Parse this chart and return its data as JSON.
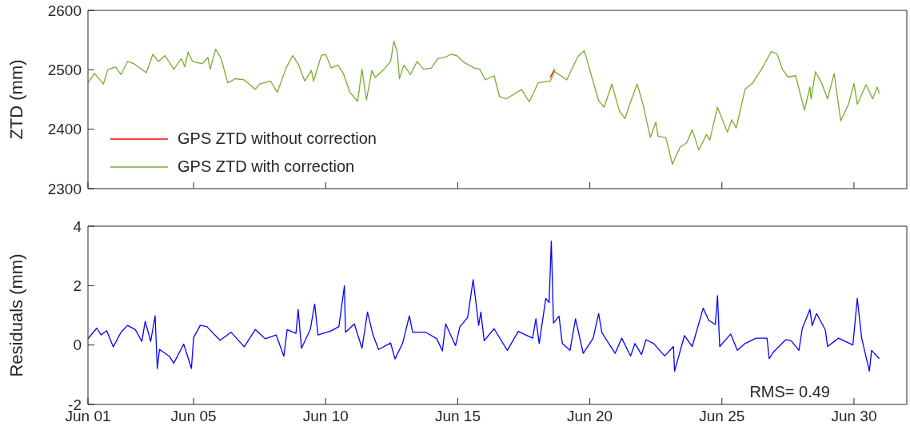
{
  "chart_data": [
    {
      "type": "line",
      "ylabel": "ZTD (mm)",
      "ylim": [
        2300,
        2600
      ],
      "yticks": [
        2300,
        2400,
        2500,
        2600
      ],
      "xlim": [
        "--06-01",
        "--07-02"
      ],
      "xticks": [
        {
          "value": "--06-01",
          "label": null
        },
        {
          "value": "--06-05",
          "label": null
        },
        {
          "value": "--06-10",
          "label": null
        },
        {
          "value": "--06-15",
          "label": null
        },
        {
          "value": "--06-20",
          "label": null
        },
        {
          "value": "--06-25",
          "label": null
        },
        {
          "value": "--06-30",
          "label": null
        }
      ],
      "tick_labels": "y",
      "legend": "bottom left",
      "marker": "none",
      "line_style": "solid",
      "x": [
        "--06-01T00:00",
        "--06-01T06:00",
        "--06-01T14:00",
        "--06-01T18:00",
        "--06-02T01:00",
        "--06-02T06:00",
        "--06-02T12:00",
        "--06-02T18:00",
        "--06-03T05:00",
        "--06-03T11:00",
        "--06-03T16:00",
        "--06-03T22:00",
        "--06-04T06:00",
        "--06-04T13:00",
        "--06-04T16:00",
        "--06-04T19:00",
        "--06-04T23:00",
        "--06-05T08:00",
        "--06-05T13:00",
        "--06-05T15:00",
        "--06-05T20:00",
        "--06-06T01:00",
        "--06-06T07:00",
        "--06-06T14:00",
        "--06-06T22:00",
        "--06-07T08:00",
        "--06-07T12:00",
        "--06-07T22:00",
        "--06-08T04:00",
        "--06-08T12:00",
        "--06-08T18:00",
        "--06-08T23:00",
        "--06-09T05:00",
        "--06-09T11:00",
        "--06-09T13:00",
        "--06-09T20:00",
        "--06-10T00:00",
        "--06-10T05:00",
        "--06-10T11:00",
        "--06-10T16:00",
        "--06-10T22:00",
        "--06-11T05:00",
        "--06-11T09:00",
        "--06-11T13:00",
        "--06-11T18:00",
        "--06-11T21:00",
        "--06-12T04:00",
        "--06-12T11:00",
        "--06-12T14:00",
        "--06-12T17:00",
        "--06-12T19:00",
        "--06-12T23:00",
        "--06-13T05:00",
        "--06-13T11:00",
        "--06-13T17:00",
        "--06-14T00:00",
        "--06-14T06:00",
        "--06-14T12:00",
        "--06-14T18:00",
        "--06-14T23:00",
        "--06-15T06:00",
        "--06-15T15:00",
        "--06-15T20:00",
        "--06-16T01:00",
        "--06-16T09:00",
        "--06-16T14:00",
        "--06-16T20:00",
        "--06-17T10:00",
        "--06-17T17:00",
        "--06-18T01:00",
        "--06-18T12:00",
        "--06-18T16:00",
        "--06-19T03:00",
        "--06-19T13:00",
        "--06-19T19:00",
        "--06-19T23:00",
        "--06-20T08:00",
        "--06-20T13:00",
        "--06-20T20:00",
        "--06-21T03:00",
        "--06-21T08:00",
        "--06-21T13:00",
        "--06-21T19:00",
        "--06-22T00:00",
        "--06-22T07:00",
        "--06-22T12:00",
        "--06-22T14:00",
        "--06-22T21:00",
        "--06-23T03:00",
        "--06-23T10:00",
        "--06-23T16:00",
        "--06-23T21:00",
        "--06-24T03:00",
        "--06-24T10:00",
        "--06-24T13:00",
        "--06-24T20:00",
        "--06-25T05:00",
        "--06-25T09:00",
        "--06-25T13:00",
        "--06-25T21:00",
        "--06-26T04:00",
        "--06-26T12:00",
        "--06-26T21:00",
        "--06-27T02:00",
        "--06-27T07:00",
        "--06-27T12:00",
        "--06-27T19:00",
        "--06-28T03:00",
        "--06-28T08:00",
        "--06-28T09:00",
        "--06-28T13:00",
        "--06-28T19:00",
        "--06-29T00:00",
        "--06-29T06:00",
        "--06-29T12:00",
        "--06-29T19:00",
        "--06-30T00:00",
        "--06-30T03:00",
        "--06-30T11:00",
        "--06-30T17:00",
        "--06-30T21:00",
        "--06-30T23:00"
      ],
      "series": [
        {
          "name": "GPS ZTD without correction",
          "color": "#ff0000",
          "values": [
            null,
            null,
            null,
            null,
            null,
            null,
            null,
            null,
            null,
            null,
            null,
            null,
            null,
            null,
            null,
            null,
            null,
            null,
            null,
            null,
            null,
            null,
            null,
            null,
            null,
            null,
            null,
            null,
            null,
            null,
            null,
            null,
            null,
            null,
            null,
            null,
            null,
            null,
            null,
            null,
            null,
            null,
            null,
            null,
            null,
            null,
            null,
            null,
            null,
            null,
            null,
            null,
            null,
            null,
            null,
            null,
            null,
            null,
            null,
            null,
            null,
            null,
            null,
            null,
            null,
            null,
            null,
            null,
            null,
            null,
            2487,
            2501,
            null,
            null,
            null,
            null,
            null,
            null,
            null,
            null,
            null,
            null,
            null,
            null,
            null,
            null,
            null,
            null,
            null,
            null,
            null,
            null,
            null,
            null,
            null,
            null,
            null,
            null,
            null,
            null,
            null,
            null,
            null,
            null,
            null,
            null,
            null,
            null,
            null,
            null,
            null,
            null,
            null,
            null,
            null,
            null,
            null,
            null,
            null,
            null,
            null,
            null
          ]
        },
        {
          "name": "GPS ZTD with correction",
          "color": "#77ac30",
          "values": [
            2478,
            2494,
            2476,
            2500,
            2505,
            2492,
            2514,
            2510,
            2495,
            2526,
            2514,
            2524,
            2501,
            2519,
            2505,
            2530,
            2514,
            2510,
            2521,
            2501,
            2535,
            2519,
            2478,
            2485,
            2483,
            2467,
            2476,
            2481,
            2462,
            2503,
            2524,
            2510,
            2481,
            2499,
            2481,
            2524,
            2526,
            2503,
            2508,
            2494,
            2462,
            2447,
            2501,
            2449,
            2499,
            2487,
            2499,
            2514,
            2548,
            2530,
            2485,
            2508,
            2492,
            2514,
            2501,
            2503,
            2519,
            2521,
            2526,
            2524,
            2512,
            2503,
            2501,
            2483,
            2490,
            2455,
            2451,
            2467,
            2446,
            2478,
            2481,
            2497,
            2483,
            2522,
            2532,
            2506,
            2448,
            2437,
            2476,
            2430,
            2418,
            2446,
            2476,
            2444,
            2386,
            2412,
            2388,
            2386,
            2341,
            2370,
            2377,
            2399,
            2365,
            2391,
            2382,
            2437,
            2395,
            2416,
            2402,
            2467,
            2478,
            2501,
            2531,
            2527,
            2501,
            2488,
            2490,
            2432,
            2471,
            2451,
            2497,
            2476,
            2451,
            2494,
            2414,
            2442,
            2477,
            2442,
            2475,
            2451,
            2471,
            2460
          ]
        }
      ]
    },
    {
      "type": "line",
      "ylabel": "Residuals (mm)",
      "ylim": [
        -2,
        4
      ],
      "yticks": [
        -2,
        0,
        2,
        4
      ],
      "xlim": [
        "--06-01",
        "--07-02"
      ],
      "xticks": [
        {
          "value": "--06-01",
          "label": "Jun 01"
        },
        {
          "value": "--06-05",
          "label": "Jun 05"
        },
        {
          "value": "--06-10",
          "label": "Jun 10"
        },
        {
          "value": "--06-15",
          "label": "Jun 15"
        },
        {
          "value": "--06-20",
          "label": "Jun 20"
        },
        {
          "value": "--06-25",
          "label": "Jun 25"
        },
        {
          "value": "--06-30",
          "label": "Jun 30"
        }
      ],
      "marker": "none",
      "line_style": "solid",
      "annotations": [
        "RMS= 0.49"
      ],
      "x": [
        "--06-01T00:00",
        "--06-01T08:00",
        "--06-01T12:00",
        "--06-01T17:00",
        "--06-01T23:00",
        "--06-02T06:00",
        "--06-02T12:00",
        "--06-02T19:00",
        "--06-03T01:00",
        "--06-03T04:00",
        "--06-03T09:00",
        "--06-03T13:00",
        "--06-03T15:00",
        "--06-03T17:00",
        "--06-04T02:00",
        "--06-04T06:00",
        "--06-04T15:00",
        "--06-04T22:00",
        "--06-05T00:00",
        "--06-05T06:00",
        "--06-05T12:00",
        "--06-06T00:00",
        "--06-06T10:00",
        "--06-06T22:00",
        "--06-07T08:00",
        "--06-07T17:00",
        "--06-08T03:00",
        "--06-08T10:00",
        "--06-08T13:00",
        "--06-08T21:00",
        "--06-08T23:00",
        "--06-09T02:00",
        "--06-09T10:00",
        "--06-09T14:00",
        "--06-09T17:00",
        "--06-10T05:00",
        "--06-10T12:00",
        "--06-10T17:00",
        "--06-10T18:00",
        "--06-11T02:00",
        "--06-11T09:00",
        "--06-11T14:00",
        "--06-11T19:00",
        "--06-12T00:00",
        "--06-12T11:00",
        "--06-12T15:00",
        "--06-12T22:00",
        "--06-13T04:00",
        "--06-13T07:00",
        "--06-13T19:00",
        "--06-14T05:00",
        "--06-14T10:00",
        "--06-14T13:00",
        "--06-14T22:00",
        "--06-15T02:00",
        "--06-15T09:00",
        "--06-15T14:00",
        "--06-15T19:00",
        "--06-15T21:00",
        "--06-16T00:00",
        "--06-16T09:00",
        "--06-16T21:00",
        "--06-17T07:00",
        "--06-17T20:00",
        "--06-17T23:00",
        "--06-18T02:00",
        "--06-18T08:00",
        "--06-18T11:00",
        "--06-18T13:00",
        "--06-18T15:00",
        "--06-18T20:00",
        "--06-18T23:00",
        "--06-19T06:00",
        "--06-19T11:00",
        "--06-19T18:00",
        "--06-20T03:00",
        "--06-20T08:00",
        "--06-20T11:00",
        "--06-20T23:00",
        "--06-21T05:00",
        "--06-21T13:00",
        "--06-21T17:00",
        "--06-21T23:00",
        "--06-22T03:00",
        "--06-22T10:00",
        "--06-22T20:00",
        "--06-23T04:00",
        "--06-23T05:00",
        "--06-23T14:00",
        "--06-23T21:00",
        "--06-24T07:00",
        "--06-24T12:00",
        "--06-24T18:00",
        "--06-24T20:00",
        "--06-24T22:00",
        "--06-25T08:00",
        "--06-25T14:00",
        "--06-25T21:00",
        "--06-26T07:00",
        "--06-26T17:00",
        "--06-26T19:00",
        "--06-26T23:00",
        "--06-27T10:00",
        "--06-27T15:00",
        "--06-27T22:00",
        "--06-28T01:00",
        "--06-28T08:00",
        "--06-28T10:00",
        "--06-28T14:00",
        "--06-28T22:00",
        "--06-29T00:00",
        "--06-29T10:00",
        "--06-29T23:00",
        "--06-30T03:00",
        "--06-30T07:00",
        "--06-30T14:00",
        "--06-30T16:00",
        "--06-30T23:00"
      ],
      "series": [
        {
          "color": "#0000ff",
          "values": [
            0.21,
            0.57,
            0.34,
            0.48,
            -0.06,
            0.43,
            0.66,
            0.52,
            0.12,
            0.8,
            0.12,
            0.98,
            -0.79,
            -0.15,
            -0.38,
            -0.61,
            0.03,
            -0.79,
            0.25,
            0.66,
            0.62,
            0.16,
            0.43,
            -0.06,
            0.52,
            0.21,
            0.34,
            -0.38,
            0.52,
            0.39,
            1.2,
            -0.11,
            0.52,
            1.38,
            0.34,
            0.48,
            0.62,
            1.99,
            0.43,
            0.71,
            -0.11,
            1.11,
            0.34,
            -0.15,
            0.07,
            -0.47,
            0.07,
            0.98,
            0.43,
            0.43,
            0.21,
            -0.2,
            0.71,
            -0.02,
            0.62,
            0.93,
            2.2,
            0.66,
            1.11,
            0.14,
            0.55,
            -0.18,
            0.46,
            0.23,
            0.88,
            0.05,
            1.57,
            1.43,
            3.5,
            0.74,
            0.97,
            0.05,
            -0.18,
            0.88,
            -0.28,
            0.23,
            1.06,
            0.41,
            -0.28,
            0.23,
            -0.37,
            0.05,
            -0.32,
            0.18,
            0.05,
            -0.37,
            -0.05,
            -0.88,
            0.32,
            -0.05,
            1.24,
            0.83,
            0.69,
            1.66,
            -0.05,
            0.37,
            -0.18,
            0.05,
            0.23,
            0.23,
            -0.46,
            -0.23,
            0.18,
            0.14,
            -0.18,
            0.55,
            1.2,
            0.65,
            1.06,
            0.51,
            -0.05,
            0.23,
            0.0,
            1.57,
            0.23,
            -0.88,
            -0.18,
            -0.46
          ]
        }
      ]
    }
  ]
}
